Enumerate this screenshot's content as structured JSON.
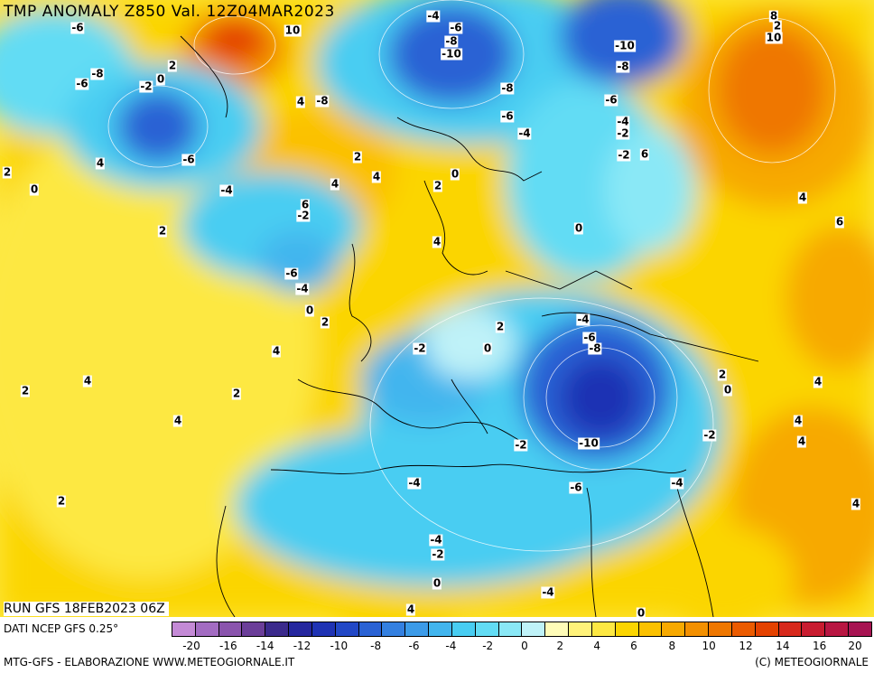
{
  "title": "TMP ANOMALY Z850 Val. 12Z04MAR2023",
  "run_label": "RUN GFS 18FEB2023 06Z",
  "data_source": "DATI NCEP GFS 0.25°",
  "credit_left": "MTG-GFS - ELABORAZIONE WWW.METEOGIORNALE.IT",
  "credit_right": "(C) METEOGIORNALE",
  "colorbar": {
    "colors": [
      "#c48ad6",
      "#a36cc2",
      "#8a54ad",
      "#6b3e99",
      "#3b2a8c",
      "#25279e",
      "#1f33b4",
      "#2248c6",
      "#2a62d4",
      "#3480e0",
      "#3c9be8",
      "#42b5ee",
      "#48cdf2",
      "#62dcf4",
      "#8ae8f6",
      "#bff2f8",
      "#fffcb8",
      "#fff27a",
      "#fde843",
      "#fbd500",
      "#fbc100",
      "#f7a900",
      "#f39000",
      "#ef7700",
      "#eb5b00",
      "#e44200",
      "#d7291c",
      "#c81c30",
      "#b81642",
      "#a71452"
    ],
    "tick_labels": [
      "-20",
      "-16",
      "-14",
      "-12",
      "-10",
      "-8",
      "-6",
      "-4",
      "-2",
      "0",
      "2",
      "4",
      "6",
      "8",
      "10",
      "12",
      "14",
      "16",
      "20"
    ]
  },
  "map_labels": [
    "-6",
    "-8",
    "-6",
    "-2",
    "0",
    "2",
    "10",
    "-4",
    "-6",
    "-8",
    "-10",
    "-10",
    "-8",
    "-8",
    "-6",
    "-6",
    "-4",
    "-2",
    "-4",
    "-2",
    "6",
    "8",
    "10",
    "2",
    "4",
    "-8",
    "-6",
    "-4",
    "4",
    "0",
    "-2",
    "6",
    "2",
    "4",
    "2",
    "0",
    "2",
    "4",
    "0",
    "2",
    "4",
    "4",
    "-6",
    "-4",
    "0",
    "2",
    "4",
    "-4",
    "-6",
    "-8",
    "-2",
    "0",
    "2",
    "2",
    "4",
    "2",
    "0",
    "4",
    "2",
    "4",
    "4",
    "-2",
    "-10",
    "-2",
    "4",
    "2",
    "-4",
    "-6",
    "-4",
    "4",
    "-4",
    "-2",
    "0",
    "-4",
    "4",
    "0",
    "6"
  ]
}
